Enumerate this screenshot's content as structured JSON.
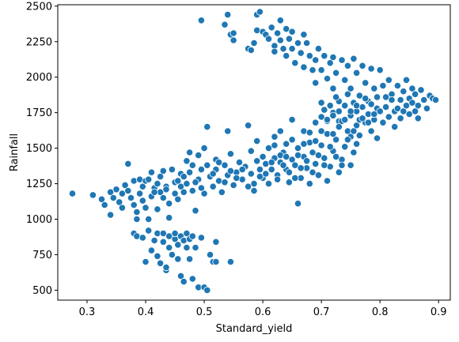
{
  "chart_data": {
    "type": "scatter",
    "title": "",
    "xlabel": "Standard_yield",
    "ylabel": "Rainfall",
    "xlim": [
      0.25,
      0.92
    ],
    "ylim": [
      430,
      2510
    ],
    "xticks": [
      0.3,
      0.4,
      0.5,
      0.6,
      0.7,
      0.8,
      0.9
    ],
    "xtick_labels": [
      "0.3",
      "0.4",
      "0.5",
      "0.6",
      "0.7",
      "0.8",
      "0.9"
    ],
    "yticks": [
      500,
      750,
      1000,
      1250,
      1500,
      1750,
      2000,
      2250,
      2500
    ],
    "ytick_labels": [
      "500",
      "750",
      "1000",
      "1250",
      "1500",
      "1750",
      "2000",
      "2250",
      "2500"
    ],
    "grid": false,
    "legend": null,
    "marker_color": "#1f77b4",
    "marker_edge": "#ffffff",
    "points": [
      [
        0.275,
        1180
      ],
      [
        0.31,
        1170
      ],
      [
        0.325,
        1140
      ],
      [
        0.33,
        1100
      ],
      [
        0.34,
        1190
      ],
      [
        0.34,
        1030
      ],
      [
        0.345,
        1150
      ],
      [
        0.35,
        1210
      ],
      [
        0.355,
        1120
      ],
      [
        0.36,
        1180
      ],
      [
        0.36,
        1080
      ],
      [
        0.365,
        1240
      ],
      [
        0.37,
        1390
      ],
      [
        0.37,
        1200
      ],
      [
        0.375,
        1150
      ],
      [
        0.38,
        1270
      ],
      [
        0.38,
        1100
      ],
      [
        0.385,
        1050
      ],
      [
        0.385,
        1000
      ],
      [
        0.39,
        1280
      ],
      [
        0.39,
        1180
      ],
      [
        0.395,
        1230
      ],
      [
        0.395,
        1130
      ],
      [
        0.4,
        1270
      ],
      [
        0.4,
        1080
      ],
      [
        0.405,
        1000
      ],
      [
        0.41,
        1160
      ],
      [
        0.41,
        1330
      ],
      [
        0.415,
        1220
      ],
      [
        0.42,
        1250
      ],
      [
        0.42,
        1070
      ],
      [
        0.425,
        1190
      ],
      [
        0.43,
        1340
      ],
      [
        0.43,
        1150
      ],
      [
        0.435,
        1230
      ],
      [
        0.44,
        1110
      ],
      [
        0.44,
        1010
      ],
      [
        0.445,
        1350
      ],
      [
        0.45,
        1260
      ],
      [
        0.45,
        1180
      ],
      [
        0.455,
        1140
      ],
      [
        0.46,
        1320
      ],
      [
        0.46,
        1230
      ],
      [
        0.465,
        1300
      ],
      [
        0.47,
        1410
      ],
      [
        0.47,
        1250
      ],
      [
        0.475,
        1470
      ],
      [
        0.48,
        1380
      ],
      [
        0.48,
        1200
      ],
      [
        0.485,
        1060
      ],
      [
        0.49,
        1280
      ],
      [
        0.49,
        1450
      ],
      [
        0.495,
        1350
      ],
      [
        0.5,
        1500
      ],
      [
        0.5,
        1180
      ],
      [
        0.505,
        1650
      ],
      [
        0.51,
        1300
      ],
      [
        0.515,
        1230
      ],
      [
        0.52,
        1420
      ],
      [
        0.52,
        1350
      ],
      [
        0.525,
        1270
      ],
      [
        0.53,
        1190
      ],
      [
        0.535,
        1380
      ],
      [
        0.54,
        1620
      ],
      [
        0.54,
        1310
      ],
      [
        0.545,
        1460
      ],
      [
        0.55,
        1240
      ],
      [
        0.555,
        1330
      ],
      [
        0.56,
        1400
      ],
      [
        0.565,
        1280
      ],
      [
        0.57,
        1370
      ],
      [
        0.575,
        1660
      ],
      [
        0.58,
        1480
      ],
      [
        0.58,
        1320
      ],
      [
        0.585,
        1250
      ],
      [
        0.59,
        1410
      ],
      [
        0.59,
        1550
      ],
      [
        0.595,
        1350
      ],
      [
        0.6,
        1440
      ],
      [
        0.6,
        1290
      ],
      [
        0.605,
        1390
      ],
      [
        0.61,
        1500
      ],
      [
        0.61,
        1250
      ],
      [
        0.615,
        1350
      ],
      [
        0.62,
        1430
      ],
      [
        0.62,
        1580
      ],
      [
        0.625,
        1310
      ],
      [
        0.63,
        1400
      ],
      [
        0.63,
        1620
      ],
      [
        0.635,
        1470
      ],
      [
        0.64,
        1350
      ],
      [
        0.64,
        1530
      ],
      [
        0.645,
        1260
      ],
      [
        0.65,
        1420
      ],
      [
        0.65,
        1700
      ],
      [
        0.655,
        1380
      ],
      [
        0.66,
        1500
      ],
      [
        0.66,
        1110
      ],
      [
        0.665,
        1290
      ],
      [
        0.67,
        1440
      ],
      [
        0.67,
        1620
      ],
      [
        0.675,
        1360
      ],
      [
        0.68,
        1540
      ],
      [
        0.68,
        1250
      ],
      [
        0.685,
        1470
      ],
      [
        0.69,
        1390
      ],
      [
        0.69,
        1680
      ],
      [
        0.695,
        1310
      ],
      [
        0.7,
        1520
      ],
      [
        0.7,
        1820
      ],
      [
        0.705,
        1430
      ],
      [
        0.71,
        1600
      ],
      [
        0.71,
        1270
      ],
      [
        0.715,
        1370
      ],
      [
        0.72,
        1480
      ],
      [
        0.72,
        1750
      ],
      [
        0.725,
        1560
      ],
      [
        0.73,
        1330
      ],
      [
        0.73,
        1690
      ],
      [
        0.735,
        1420
      ],
      [
        0.74,
        1510
      ],
      [
        0.745,
        1620
      ],
      [
        0.75,
        1380
      ],
      [
        0.75,
        1580
      ],
      [
        0.755,
        1470
      ],
      [
        0.76,
        1660
      ],
      [
        0.76,
        1530
      ],
      [
        0.405,
        1280
      ],
      [
        0.415,
        1190
      ],
      [
        0.425,
        1300
      ],
      [
        0.435,
        1210
      ],
      [
        0.455,
        1270
      ],
      [
        0.465,
        1190
      ],
      [
        0.475,
        1330
      ],
      [
        0.485,
        1260
      ],
      [
        0.495,
        1220
      ],
      [
        0.505,
        1380
      ],
      [
        0.515,
        1320
      ],
      [
        0.525,
        1400
      ],
      [
        0.535,
        1260
      ],
      [
        0.545,
        1340
      ],
      [
        0.555,
        1290
      ],
      [
        0.565,
        1350
      ],
      [
        0.575,
        1230
      ],
      [
        0.585,
        1200
      ],
      [
        0.595,
        1300
      ],
      [
        0.605,
        1320
      ],
      [
        0.615,
        1400
      ],
      [
        0.625,
        1280
      ],
      [
        0.635,
        1380
      ],
      [
        0.645,
        1330
      ],
      [
        0.655,
        1290
      ],
      [
        0.665,
        1360
      ],
      [
        0.675,
        1410
      ],
      [
        0.685,
        1330
      ],
      [
        0.695,
        1450
      ],
      [
        0.705,
        1380
      ],
      [
        0.715,
        1510
      ],
      [
        0.725,
        1440
      ],
      [
        0.735,
        1380
      ],
      [
        0.745,
        1560
      ],
      [
        0.755,
        1620
      ],
      [
        0.765,
        1590
      ],
      [
        0.775,
        1680
      ],
      [
        0.785,
        1620
      ],
      [
        0.795,
        1570
      ],
      [
        0.38,
        900
      ],
      [
        0.385,
        880
      ],
      [
        0.395,
        870
      ],
      [
        0.4,
        700
      ],
      [
        0.405,
        920
      ],
      [
        0.41,
        780
      ],
      [
        0.415,
        850
      ],
      [
        0.42,
        900
      ],
      [
        0.42,
        740
      ],
      [
        0.425,
        690
      ],
      [
        0.43,
        840
      ],
      [
        0.43,
        900
      ],
      [
        0.435,
        640
      ],
      [
        0.435,
        660
      ],
      [
        0.44,
        800
      ],
      [
        0.44,
        880
      ],
      [
        0.445,
        750
      ],
      [
        0.45,
        860
      ],
      [
        0.45,
        900
      ],
      [
        0.455,
        820
      ],
      [
        0.455,
        720
      ],
      [
        0.46,
        880
      ],
      [
        0.46,
        600
      ],
      [
        0.465,
        850
      ],
      [
        0.465,
        560
      ],
      [
        0.47,
        800
      ],
      [
        0.47,
        900
      ],
      [
        0.475,
        720
      ],
      [
        0.475,
        860
      ],
      [
        0.48,
        880
      ],
      [
        0.48,
        580
      ],
      [
        0.485,
        800
      ],
      [
        0.49,
        520
      ],
      [
        0.495,
        870
      ],
      [
        0.5,
        520
      ],
      [
        0.505,
        500
      ],
      [
        0.51,
        750
      ],
      [
        0.515,
        700
      ],
      [
        0.52,
        840
      ],
      [
        0.52,
        700
      ],
      [
        0.545,
        700
      ],
      [
        0.495,
        2400
      ],
      [
        0.535,
        2370
      ],
      [
        0.54,
        2440
      ],
      [
        0.545,
        2300
      ],
      [
        0.55,
        2310
      ],
      [
        0.55,
        2260
      ],
      [
        0.575,
        2200
      ],
      [
        0.58,
        2190
      ],
      [
        0.585,
        2240
      ],
      [
        0.59,
        2440
      ],
      [
        0.59,
        2330
      ],
      [
        0.595,
        2460
      ],
      [
        0.6,
        2320
      ],
      [
        0.605,
        2300
      ],
      [
        0.61,
        2270
      ],
      [
        0.615,
        2350
      ],
      [
        0.62,
        2220
      ],
      [
        0.62,
        2180
      ],
      [
        0.625,
        2310
      ],
      [
        0.63,
        2400
      ],
      [
        0.63,
        2260
      ],
      [
        0.635,
        2200
      ],
      [
        0.64,
        2340
      ],
      [
        0.64,
        2150
      ],
      [
        0.645,
        2270
      ],
      [
        0.65,
        2200
      ],
      [
        0.65,
        2320
      ],
      [
        0.655,
        2100
      ],
      [
        0.66,
        2240
      ],
      [
        0.665,
        2170
      ],
      [
        0.67,
        2300
      ],
      [
        0.67,
        2070
      ],
      [
        0.675,
        2240
      ],
      [
        0.68,
        2150
      ],
      [
        0.685,
        2050
      ],
      [
        0.69,
        2120
      ],
      [
        0.69,
        1960
      ],
      [
        0.695,
        2200
      ],
      [
        0.7,
        2050
      ],
      [
        0.705,
        2150
      ],
      [
        0.71,
        1990
      ],
      [
        0.715,
        2100
      ],
      [
        0.72,
        1920
      ],
      [
        0.72,
        2140
      ],
      [
        0.725,
        2030
      ],
      [
        0.73,
        1830
      ],
      [
        0.735,
        2120
      ],
      [
        0.74,
        1980
      ],
      [
        0.745,
        2080
      ],
      [
        0.75,
        1920
      ],
      [
        0.755,
        2130
      ],
      [
        0.76,
        2030
      ],
      [
        0.765,
        1870
      ],
      [
        0.77,
        2080
      ],
      [
        0.775,
        1960
      ],
      [
        0.78,
        1830
      ],
      [
        0.785,
        2060
      ],
      [
        0.79,
        1920
      ],
      [
        0.795,
        1780
      ],
      [
        0.8,
        2050
      ],
      [
        0.805,
        1940
      ],
      [
        0.81,
        1860
      ],
      [
        0.815,
        1980
      ],
      [
        0.82,
        1880
      ],
      [
        0.825,
        1760
      ],
      [
        0.83,
        1940
      ],
      [
        0.835,
        1840
      ],
      [
        0.84,
        1900
      ],
      [
        0.845,
        1980
      ],
      [
        0.85,
        1850
      ],
      [
        0.855,
        1920
      ],
      [
        0.86,
        1880
      ],
      [
        0.865,
        1800
      ],
      [
        0.87,
        1910
      ],
      [
        0.875,
        1840
      ],
      [
        0.88,
        1780
      ],
      [
        0.885,
        1870
      ],
      [
        0.89,
        1850
      ],
      [
        0.895,
        1840
      ],
      [
        0.7,
        1720
      ],
      [
        0.705,
        1770
      ],
      [
        0.71,
        1690
      ],
      [
        0.715,
        1800
      ],
      [
        0.72,
        1730
      ],
      [
        0.725,
        1860
      ],
      [
        0.73,
        1760
      ],
      [
        0.735,
        1690
      ],
      [
        0.74,
        1800
      ],
      [
        0.745,
        1880
      ],
      [
        0.75,
        1730
      ],
      [
        0.755,
        1820
      ],
      [
        0.76,
        1760
      ],
      [
        0.765,
        1700
      ],
      [
        0.77,
        1790
      ],
      [
        0.775,
        1850
      ],
      [
        0.78,
        1740
      ],
      [
        0.785,
        1810
      ],
      [
        0.79,
        1700
      ],
      [
        0.795,
        1860
      ],
      [
        0.8,
        1760
      ],
      [
        0.805,
        1680
      ],
      [
        0.81,
        1790
      ],
      [
        0.815,
        1720
      ],
      [
        0.82,
        1840
      ],
      [
        0.825,
        1650
      ],
      [
        0.83,
        1780
      ],
      [
        0.835,
        1710
      ],
      [
        0.84,
        1760
      ],
      [
        0.845,
        1800
      ],
      [
        0.85,
        1740
      ],
      [
        0.855,
        1820
      ],
      [
        0.86,
        1760
      ],
      [
        0.865,
        1710
      ],
      [
        0.62,
        1520
      ],
      [
        0.63,
        1450
      ],
      [
        0.64,
        1440
      ],
      [
        0.65,
        1560
      ],
      [
        0.66,
        1450
      ],
      [
        0.67,
        1530
      ],
      [
        0.68,
        1610
      ],
      [
        0.69,
        1550
      ],
      [
        0.7,
        1620
      ],
      [
        0.71,
        1700
      ],
      [
        0.72,
        1600
      ],
      [
        0.73,
        1650
      ],
      [
        0.74,
        1700
      ],
      [
        0.75,
        1760
      ],
      [
        0.76,
        1800
      ],
      [
        0.77,
        1710
      ],
      [
        0.78,
        1680
      ],
      [
        0.79,
        1740
      ]
    ]
  }
}
